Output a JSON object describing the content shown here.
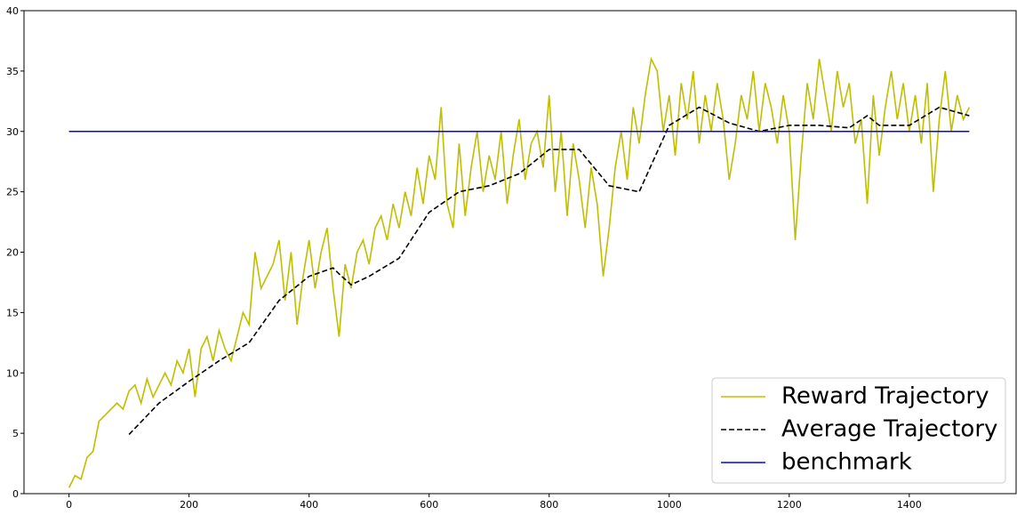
{
  "chart_data": {
    "type": "line",
    "xlim": [
      -75,
      1578
    ],
    "ylim": [
      0,
      40
    ],
    "xticks": [
      0,
      200,
      400,
      600,
      800,
      1000,
      1200,
      1400
    ],
    "yticks": [
      0,
      5,
      10,
      15,
      20,
      25,
      30,
      35,
      40
    ],
    "legend": "lower right",
    "series": [
      {
        "name": "Reward Trajectory",
        "color": "#bfbf00",
        "linestyle": "solid",
        "x": [
          0,
          10,
          20,
          30,
          40,
          50,
          60,
          70,
          80,
          90,
          100,
          110,
          120,
          130,
          140,
          150,
          160,
          170,
          180,
          190,
          200,
          210,
          220,
          230,
          240,
          250,
          260,
          270,
          280,
          290,
          300,
          310,
          320,
          330,
          340,
          350,
          360,
          370,
          380,
          390,
          400,
          410,
          420,
          430,
          440,
          450,
          460,
          470,
          480,
          490,
          500,
          510,
          520,
          530,
          540,
          550,
          560,
          570,
          580,
          590,
          600,
          610,
          620,
          630,
          640,
          650,
          660,
          670,
          680,
          690,
          700,
          710,
          720,
          730,
          740,
          750,
          760,
          770,
          780,
          790,
          800,
          810,
          820,
          830,
          840,
          850,
          860,
          870,
          880,
          890,
          900,
          910,
          920,
          930,
          940,
          950,
          960,
          970,
          980,
          990,
          1000,
          1010,
          1020,
          1030,
          1040,
          1050,
          1060,
          1070,
          1080,
          1090,
          1100,
          1110,
          1120,
          1130,
          1140,
          1150,
          1160,
          1170,
          1180,
          1190,
          1200,
          1210,
          1220,
          1230,
          1240,
          1250,
          1260,
          1270,
          1280,
          1290,
          1300,
          1310,
          1320,
          1330,
          1340,
          1350,
          1360,
          1370,
          1380,
          1390,
          1400,
          1410,
          1420,
          1430,
          1440,
          1450,
          1460,
          1470,
          1480,
          1490,
          1500
        ],
        "values": [
          0.5,
          1.5,
          1.2,
          3,
          3.5,
          6,
          6.5,
          7,
          7.5,
          7,
          8.5,
          9,
          7.5,
          9.5,
          8,
          9,
          10,
          9,
          11,
          10,
          12,
          8,
          12,
          13,
          11,
          13.5,
          12,
          11,
          13,
          15,
          14,
          20,
          17,
          18,
          19,
          21,
          16,
          20,
          14,
          18,
          21,
          17,
          20,
          22,
          17,
          13,
          19,
          17,
          20,
          21,
          19,
          22,
          23,
          21,
          24,
          22,
          25,
          23,
          27,
          24,
          28,
          26,
          32,
          24,
          22,
          29,
          23,
          27,
          30,
          25,
          28,
          26,
          30,
          24,
          28,
          31,
          26,
          29,
          30,
          27,
          33,
          25,
          30,
          23,
          29,
          26,
          22,
          27,
          24,
          18,
          22,
          27,
          30,
          26,
          32,
          29,
          33,
          36,
          35,
          30,
          33,
          28,
          34,
          31,
          35,
          29,
          33,
          30,
          34,
          31,
          26,
          29,
          33,
          31,
          35,
          30,
          34,
          32,
          29,
          33,
          30,
          21,
          28,
          34,
          31,
          36,
          33,
          30,
          35,
          32,
          34,
          29,
          31,
          24,
          33,
          28,
          32,
          35,
          31,
          34,
          30,
          33,
          29,
          34,
          25,
          31,
          35,
          30,
          33,
          31,
          32
        ]
      },
      {
        "name": "Average Trajectory",
        "color": "#000000",
        "linestyle": "dashed",
        "x": [
          100,
          150,
          200,
          250,
          300,
          350,
          400,
          440,
          450,
          470,
          500,
          550,
          600,
          650,
          700,
          750,
          800,
          850,
          900,
          950,
          1000,
          1050,
          1100,
          1150,
          1200,
          1250,
          1300,
          1330,
          1350,
          1400,
          1450,
          1500
        ],
        "values": [
          4.9,
          7.5,
          9.3,
          11,
          12.5,
          16,
          18,
          18.7,
          18.2,
          17.3,
          18,
          19.5,
          23.3,
          25,
          25.5,
          26.5,
          28.5,
          28.5,
          25.5,
          25,
          30.5,
          32,
          30.7,
          30,
          30.5,
          30.5,
          30.3,
          31.3,
          30.5,
          30.5,
          32,
          31.3
        ]
      },
      {
        "name": "benchmark",
        "color": "#0000ff",
        "linestyle": "solid",
        "x": [
          0,
          1500
        ],
        "values": [
          30,
          30
        ]
      }
    ]
  }
}
